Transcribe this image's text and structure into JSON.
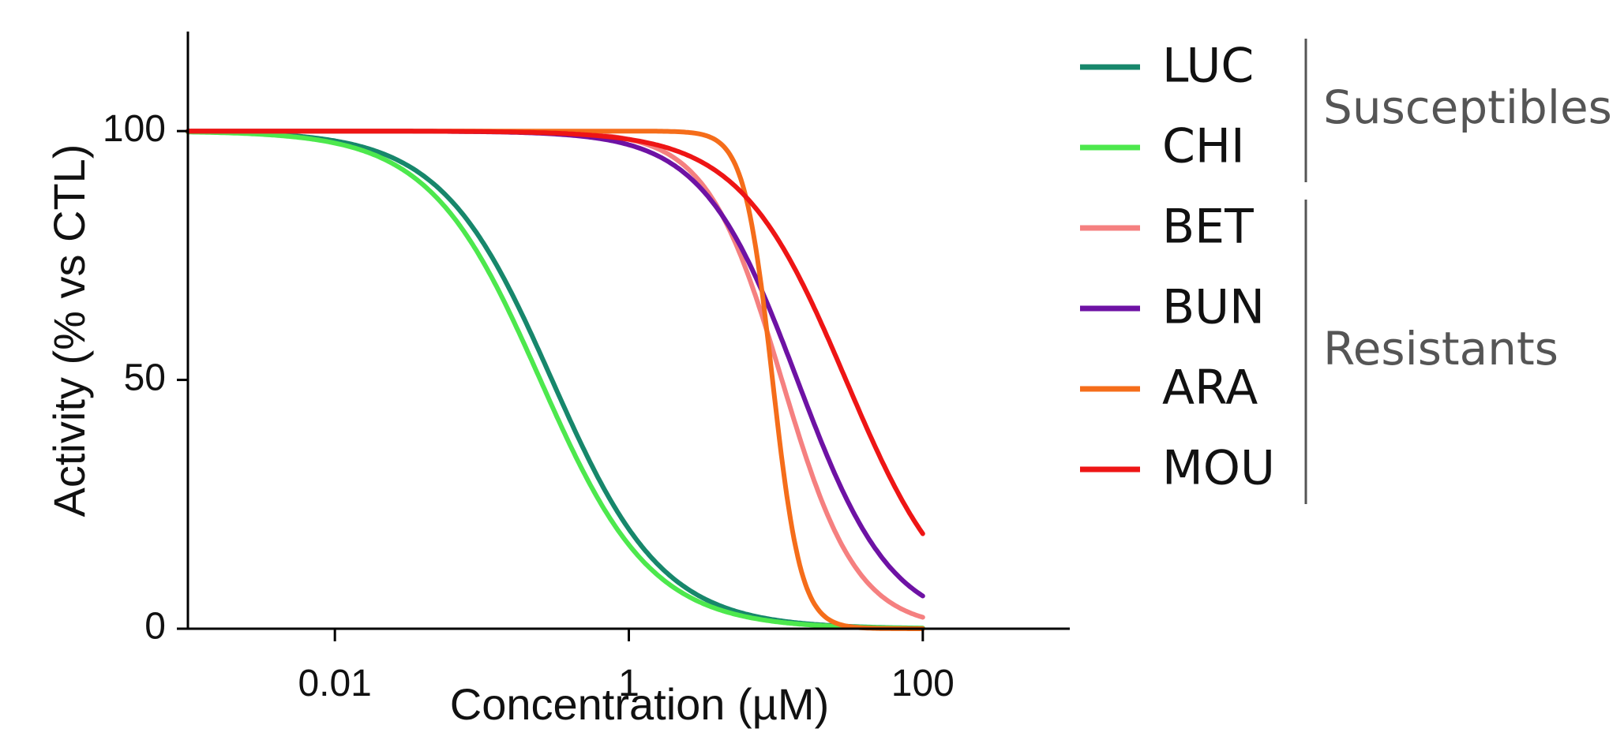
{
  "chart_data": {
    "type": "line",
    "xlabel": "Concentration (µM)",
    "ylabel": "Activity (% vs CTL)",
    "x_scale": "log",
    "xlim": [
      0.001,
      1000
    ],
    "ylim": [
      0,
      120
    ],
    "x_ticks": [
      {
        "value": 0.01,
        "label": "0.01"
      },
      {
        "value": 1,
        "label": "1"
      },
      {
        "value": 100,
        "label": "100"
      }
    ],
    "y_ticks": [
      {
        "value": 0,
        "label": "0"
      },
      {
        "value": 50,
        "label": "50"
      },
      {
        "value": 100,
        "label": "100"
      }
    ],
    "grid": false,
    "legend_position": "right",
    "series": [
      {
        "name": "LUC",
        "color": "#17876b",
        "ic50": 0.3,
        "hill": 1.15,
        "x_max": 100
      },
      {
        "name": "CHI",
        "color": "#4de84d",
        "ic50": 0.25,
        "hill": 1.15,
        "x_max": 100
      },
      {
        "name": "BET",
        "color": "#f58080",
        "ic50": 11,
        "hill": 1.7,
        "x_max": 100
      },
      {
        "name": "BUN",
        "color": "#6e12a4",
        "ic50": 14,
        "hill": 1.35,
        "x_max": 100
      },
      {
        "name": "ARA",
        "color": "#f56d1a",
        "ic50": 9.5,
        "hill": 4.5,
        "x_max": 100
      },
      {
        "name": "MOU",
        "color": "#ee1515",
        "ic50": 30,
        "hill": 1.2,
        "x_max": 100
      }
    ],
    "legend_groups": [
      {
        "label": "Susceptibles",
        "members": [
          "LUC",
          "CHI"
        ]
      },
      {
        "label": "Resistants",
        "members": [
          "BET",
          "BUN",
          "ARA",
          "MOU"
        ]
      }
    ]
  }
}
